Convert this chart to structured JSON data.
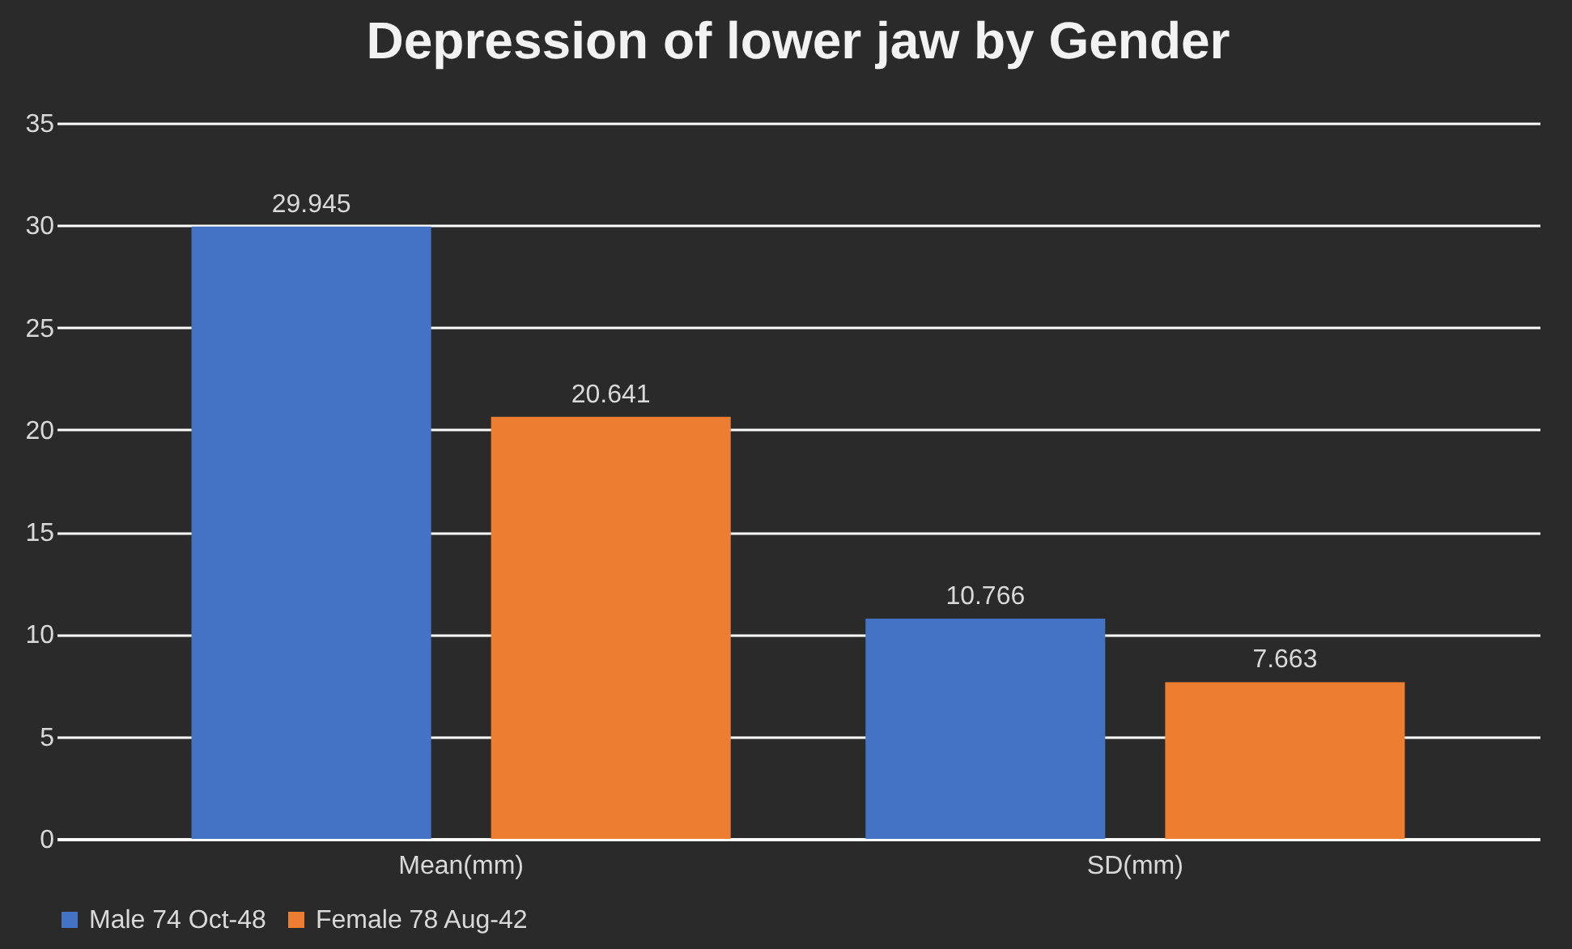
{
  "chart_data": {
    "type": "bar",
    "title": "Depression of lower jaw by Gender",
    "categories": [
      "Mean(mm)",
      "SD(mm)"
    ],
    "series": [
      {
        "name": "Male 74 Oct-48",
        "color": "#4472c4",
        "values": [
          29.945,
          10.766
        ]
      },
      {
        "name": "Female 78 Aug-42",
        "color": "#ed7d31",
        "values": [
          20.641,
          7.663
        ]
      }
    ],
    "ylim": [
      0,
      35
    ],
    "yticks": [
      0,
      5,
      10,
      15,
      20,
      25,
      30,
      35
    ],
    "grid": "y",
    "legend": "bottom",
    "data_labels": true
  }
}
